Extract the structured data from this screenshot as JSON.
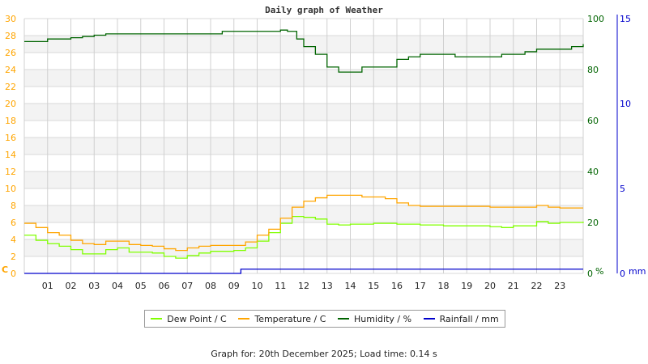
{
  "chart_data": {
    "type": "line",
    "title": "Daily graph of Weather",
    "x_ticks": [
      "01",
      "02",
      "03",
      "04",
      "05",
      "06",
      "07",
      "08",
      "09",
      "10",
      "11",
      "12",
      "13",
      "14",
      "15",
      "16",
      "17",
      "18",
      "19",
      "20",
      "21",
      "22",
      "23"
    ],
    "xlim": [
      0,
      24
    ],
    "axes": {
      "left": {
        "unit": "C",
        "ylim": [
          0,
          30
        ],
        "ticks": [
          0,
          2,
          4,
          6,
          8,
          10,
          12,
          14,
          16,
          18,
          20,
          22,
          24,
          26,
          28,
          30
        ],
        "color": "#ffa500"
      },
      "right": {
        "unit": "%",
        "ylim": [
          0,
          100
        ],
        "ticks": [
          0,
          20,
          40,
          60,
          80,
          100
        ],
        "color": "#006400"
      },
      "rain": {
        "unit": "mm",
        "ylim": [
          0,
          15
        ],
        "ticks": [
          0,
          5,
          10,
          15
        ],
        "color": "#0000cc"
      }
    },
    "grid": true,
    "legend_position": "bottom",
    "series": [
      {
        "name": "Dew Point / C",
        "axis": "left",
        "color": "#80ff00",
        "x": [
          0,
          0.5,
          1,
          1.5,
          2,
          2.5,
          3,
          3.5,
          4,
          4.5,
          5,
          5.5,
          6,
          6.5,
          7,
          7.5,
          8,
          8.5,
          9,
          9.5,
          10,
          10.5,
          11,
          11.5,
          12,
          12.5,
          13,
          13.5,
          14,
          15,
          16,
          17,
          18,
          19,
          20,
          20.5,
          21,
          22,
          22.5,
          23,
          24
        ],
        "values": [
          4.5,
          3.9,
          3.5,
          3.2,
          2.8,
          2.3,
          2.3,
          2.8,
          3.0,
          2.5,
          2.5,
          2.4,
          2.0,
          1.8,
          2.1,
          2.4,
          2.6,
          2.6,
          2.7,
          3.0,
          3.8,
          4.8,
          5.9,
          6.7,
          6.6,
          6.4,
          5.8,
          5.7,
          5.8,
          5.9,
          5.8,
          5.7,
          5.6,
          5.6,
          5.5,
          5.4,
          5.6,
          6.1,
          5.9,
          6.0,
          6.1
        ]
      },
      {
        "name": "Temperature / C",
        "axis": "left",
        "color": "#ffa500",
        "x": [
          0,
          0.5,
          1,
          1.5,
          2,
          2.5,
          3,
          3.5,
          4,
          4.5,
          5,
          5.5,
          6,
          6.5,
          7,
          7.5,
          8,
          8.5,
          9,
          9.5,
          10,
          10.5,
          11,
          11.5,
          12,
          12.5,
          13,
          13.5,
          14,
          14.5,
          15,
          15.5,
          16,
          16.5,
          17,
          18,
          19,
          20,
          21,
          22,
          22.5,
          23,
          24
        ],
        "values": [
          5.9,
          5.4,
          4.8,
          4.5,
          3.9,
          3.5,
          3.4,
          3.8,
          3.8,
          3.4,
          3.3,
          3.2,
          2.9,
          2.7,
          3.0,
          3.2,
          3.3,
          3.3,
          3.3,
          3.7,
          4.5,
          5.2,
          6.5,
          7.8,
          8.5,
          8.9,
          9.2,
          9.2,
          9.2,
          9.0,
          9.0,
          8.8,
          8.3,
          8.0,
          7.9,
          7.9,
          7.9,
          7.8,
          7.8,
          8.0,
          7.8,
          7.7,
          7.7
        ]
      },
      {
        "name": "Humidity / %",
        "axis": "right",
        "color": "#006400",
        "x": [
          0,
          0.5,
          1,
          2,
          2.5,
          3,
          3.5,
          4,
          8,
          8.5,
          10,
          11,
          11.3,
          11.7,
          12,
          12.5,
          13,
          13.5,
          14,
          14.5,
          15,
          15.5,
          16,
          16.5,
          17,
          18,
          18.5,
          20,
          20.5,
          21,
          21.5,
          22,
          23,
          23.5,
          24
        ],
        "values": [
          91,
          91,
          92,
          92.5,
          93,
          93.5,
          94,
          94,
          94,
          95,
          95,
          95.5,
          95,
          92,
          89,
          86,
          81,
          79,
          79,
          81,
          81,
          81,
          84,
          85,
          86,
          86,
          85,
          85,
          86,
          86,
          87,
          88,
          88,
          89,
          90
        ]
      },
      {
        "name": "Rainfall / mm",
        "axis": "rain",
        "color": "#0000cc",
        "x": [
          0,
          9.3,
          9.3,
          24
        ],
        "values": [
          0,
          0,
          0.25,
          0.25
        ]
      }
    ]
  },
  "footer": "Graph for:  20th December 2025; Load time: 0.14 s"
}
